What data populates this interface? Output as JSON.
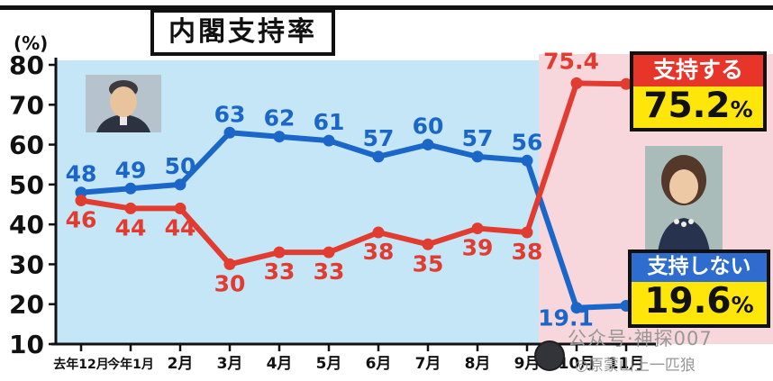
{
  "title": "内閣支持率",
  "y_unit_label": "(%)",
  "approve_box": {
    "label": "支持する",
    "value": "75.2",
    "unit": "%",
    "color": "#e8352a"
  },
  "disapprove_box": {
    "label": "支持しない",
    "value": "19.6",
    "unit": "%",
    "color": "#2f6cd0"
  },
  "watermark": {
    "line1": "公众号·神探007",
    "line2": "◎原蒙山上一匹狼"
  },
  "chart_data": {
    "type": "line",
    "title": "内閣支持率",
    "xlabel": "",
    "ylabel": "(%)",
    "ylim": [
      10,
      80
    ],
    "yticks": [
      80,
      70,
      60,
      50,
      40,
      30,
      20,
      10
    ],
    "grid": false,
    "legend_position": "right-badges",
    "categories": [
      "去年12月",
      "今年1月",
      "2月",
      "3月",
      "4月",
      "5月",
      "6月",
      "7月",
      "8月",
      "9月",
      "10月",
      "11月"
    ],
    "series": [
      {
        "name": "支持しない",
        "color": "#1b66c9",
        "values": [
          48,
          49,
          50,
          63,
          62,
          61,
          57,
          60,
          57,
          56,
          19.1,
          19.6
        ]
      },
      {
        "name": "支持する",
        "color": "#e23b30",
        "values": [
          46,
          44,
          44,
          30,
          33,
          33,
          38,
          35,
          39,
          38,
          75.4,
          75.2
        ]
      }
    ],
    "plot_background": {
      "main": "#c5e6f6",
      "highlight": "#f8d7dc",
      "highlight_from_category": "10月"
    }
  }
}
